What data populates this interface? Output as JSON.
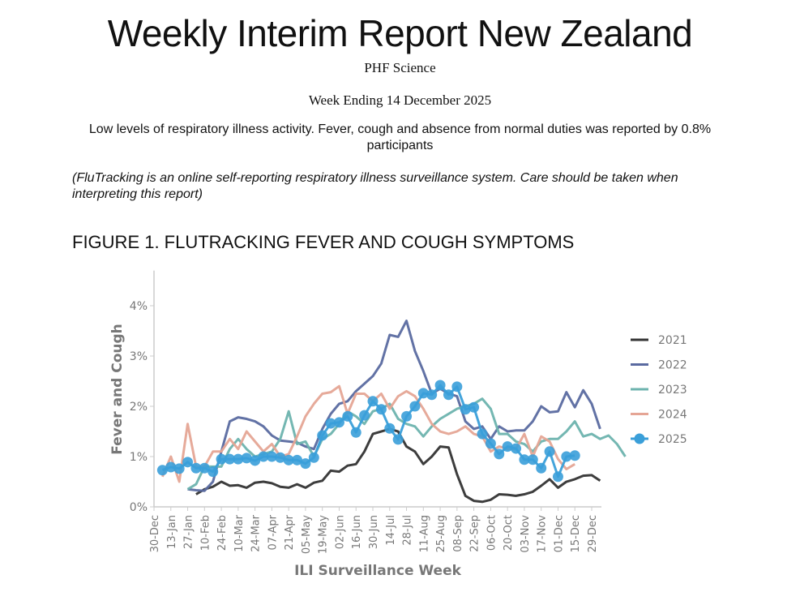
{
  "header": {
    "title": "Weekly Interim Report New Zealand",
    "org": "PHF Science",
    "week_ending": "Week Ending 14 December 2025",
    "summary": "Low levels of respiratory illness activity. Fever, cough and absence from normal duties was reported by 0.8% participants",
    "note": "(FluTracking is an online self-reporting respiratory illness surveillance system. Care should be taken when interpreting this report)",
    "figure_title": "FIGURE 1. FLUTRACKING FEVER AND COUGH SYMPTOMS"
  },
  "chart_data": {
    "type": "line",
    "title": "FIGURE 1. FLUTRACKING FEVER AND COUGH SYMPTOMS",
    "xlabel": "ILI Surveillance Week",
    "ylabel": "Fever and Cough",
    "ylim": [
      0,
      4.7
    ],
    "xlim": [
      0,
      52
    ],
    "x_tick_labels": [
      "30-Dec",
      "13-Jan",
      "27-Jan",
      "10-Feb",
      "24-Feb",
      "10-Mar",
      "24-Mar",
      "07-Apr",
      "21-Apr",
      "05-May",
      "19-May",
      "02-Jun",
      "16-Jun",
      "30-Jun",
      "14-Jul",
      "28-Jul",
      "11-Aug",
      "25-Aug",
      "08-Sep",
      "22-Sep",
      "06-Oct",
      "20-Oct",
      "03-Nov",
      "17-Nov",
      "01-Dec",
      "15-Dec",
      "29-Dec"
    ],
    "y_ticks": [
      0,
      1,
      2,
      3,
      4
    ],
    "y_tick_labels": [
      "0%",
      "1%",
      "2%",
      "3%",
      "4%"
    ],
    "legend_position": "right",
    "series": [
      {
        "name": "2021",
        "color": "#333333",
        "start_week": 5,
        "values": [
          0.25,
          0.35,
          0.4,
          0.5,
          0.42,
          0.43,
          0.38,
          0.48,
          0.5,
          0.47,
          0.4,
          0.38,
          0.45,
          0.38,
          0.48,
          0.52,
          0.72,
          0.7,
          0.82,
          0.85,
          1.1,
          1.45,
          1.5,
          1.55,
          1.5,
          1.2,
          1.1,
          0.85,
          1.0,
          1.2,
          1.18,
          0.65,
          0.22,
          0.12,
          0.1,
          0.14,
          0.25,
          0.24,
          0.22,
          0.25,
          0.3,
          0.42,
          0.55,
          0.38,
          0.5,
          0.55,
          0.62,
          0.63,
          0.52
        ]
      },
      {
        "name": "2022",
        "color": "#5a6aa0",
        "start_week": 4,
        "values": [
          0.35,
          0.33,
          0.32,
          0.5,
          1.1,
          1.7,
          1.78,
          1.75,
          1.7,
          1.6,
          1.42,
          1.32,
          1.3,
          1.28,
          1.2,
          1.15,
          1.55,
          1.85,
          2.05,
          2.1,
          2.3,
          2.45,
          2.6,
          2.85,
          3.42,
          3.38,
          3.7,
          3.1,
          2.7,
          2.25,
          2.35,
          2.25,
          2.2,
          1.7,
          1.55,
          1.6,
          1.35,
          1.6,
          1.5,
          1.52,
          1.52,
          1.7,
          2.0,
          1.88,
          1.9,
          2.28,
          1.98,
          2.32,
          2.05,
          1.55
        ]
      },
      {
        "name": "2023",
        "color": "#6db3ae",
        "start_week": 4,
        "values": [
          0.35,
          0.45,
          0.8,
          0.8,
          0.8,
          1.15,
          1.35,
          1.15,
          1.0,
          1.05,
          1.1,
          1.35,
          1.9,
          1.25,
          1.3,
          1.0,
          1.35,
          1.45,
          1.65,
          1.9,
          1.8,
          1.65,
          1.9,
          1.95,
          2.05,
          1.75,
          1.65,
          1.6,
          1.4,
          1.6,
          1.75,
          1.85,
          1.95,
          2.0,
          2.05,
          2.15,
          1.95,
          1.45,
          1.45,
          1.3,
          1.25,
          1.1,
          1.3,
          1.35,
          1.35,
          1.5,
          1.7,
          1.4,
          1.45,
          1.35,
          1.42,
          1.25,
          1.0
        ]
      },
      {
        "name": "2024",
        "color": "#e5a595",
        "start_week": 1,
        "values": [
          0.6,
          1.0,
          0.5,
          1.65,
          0.8,
          0.8,
          1.1,
          1.1,
          1.35,
          1.15,
          1.5,
          1.3,
          1.1,
          1.25,
          1.0,
          1.05,
          1.4,
          1.8,
          2.05,
          2.25,
          2.28,
          2.4,
          1.85,
          2.25,
          2.25,
          2.1,
          2.25,
          1.95,
          2.2,
          2.3,
          2.2,
          1.95,
          1.65,
          1.5,
          1.45,
          1.5,
          1.6,
          1.45,
          1.4,
          1.1,
          1.2,
          1.15,
          1.15,
          1.45,
          1.0,
          1.4,
          1.3,
          0.95,
          0.75,
          0.85
        ]
      },
      {
        "name": "2025",
        "color": "#3a9fd9",
        "start_week": 1,
        "markers": true,
        "values": [
          0.73,
          0.79,
          0.76,
          0.89,
          0.77,
          0.77,
          0.7,
          0.95,
          0.95,
          0.95,
          0.97,
          0.92,
          1.0,
          1.0,
          0.98,
          0.93,
          0.93,
          0.86,
          0.98,
          1.42,
          1.66,
          1.68,
          1.8,
          1.48,
          1.82,
          2.1,
          1.94,
          1.56,
          1.34,
          1.8,
          2.0,
          2.26,
          2.23,
          2.42,
          2.23,
          2.39,
          1.94,
          1.98,
          1.45,
          1.26,
          1.05,
          1.2,
          1.16,
          0.94,
          0.94,
          0.77,
          1.1,
          0.6,
          1.0,
          1.02
        ]
      }
    ]
  }
}
